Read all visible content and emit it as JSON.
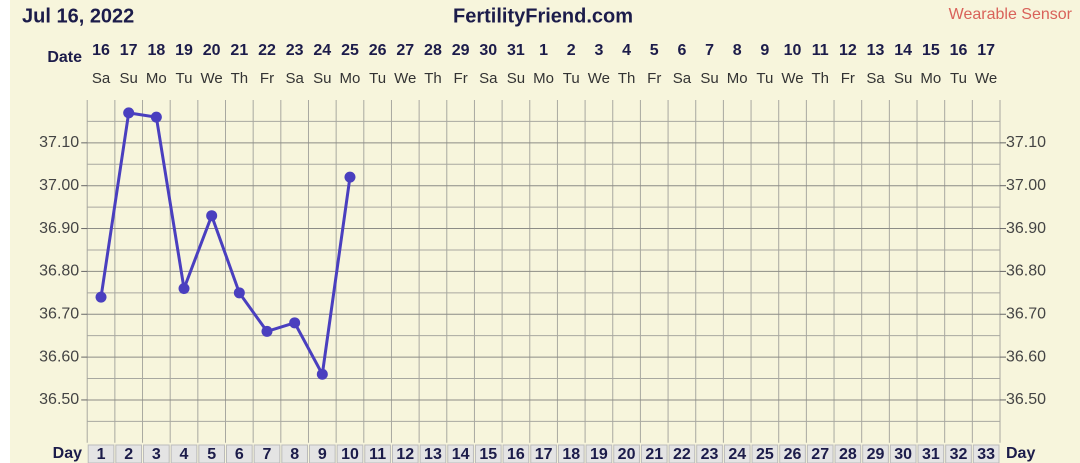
{
  "chart_data": {
    "type": "line",
    "chart_date": "Jul 16, 2022",
    "title": "FertilityFriend.com",
    "source": "Wearable Sensor",
    "date_label": "Date",
    "day_label": "Day",
    "categories": [
      "1",
      "2",
      "3",
      "4",
      "5",
      "6",
      "7",
      "8",
      "9",
      "10",
      "11",
      "12",
      "13",
      "14",
      "15",
      "16",
      "17",
      "18",
      "19",
      "20",
      "21",
      "22",
      "23",
      "24",
      "25",
      "26",
      "27",
      "28",
      "29",
      "30",
      "31",
      "32",
      "33"
    ],
    "dates": [
      "16",
      "17",
      "18",
      "19",
      "20",
      "21",
      "22",
      "23",
      "24",
      "25",
      "26",
      "27",
      "28",
      "29",
      "30",
      "31",
      "1",
      "2",
      "3",
      "4",
      "5",
      "6",
      "7",
      "8",
      "9",
      "10",
      "11",
      "12",
      "13",
      "14",
      "15",
      "16",
      "17"
    ],
    "weekdays": [
      "Sa",
      "Su",
      "Mo",
      "Tu",
      "We",
      "Th",
      "Fr",
      "Sa",
      "Su",
      "Mo",
      "Tu",
      "We",
      "Th",
      "Fr",
      "Sa",
      "Su",
      "Mo",
      "Tu",
      "We",
      "Th",
      "Fr",
      "Sa",
      "Su",
      "Mo",
      "Tu",
      "We",
      "Th",
      "Fr",
      "Sa",
      "Su",
      "Mo",
      "Tu",
      "We"
    ],
    "values": [
      36.74,
      37.17,
      37.16,
      36.76,
      36.93,
      36.75,
      36.66,
      36.68,
      36.56,
      37.02,
      null,
      null,
      null,
      null,
      null,
      null,
      null,
      null,
      null,
      null,
      null,
      null,
      null,
      null,
      null,
      null,
      null,
      null,
      null,
      null,
      null,
      null,
      null
    ],
    "color": "#4a3fbf",
    "ylim": [
      36.4,
      37.2
    ],
    "yticks": [
      {
        "value": 36.5,
        "label": "36.50"
      },
      {
        "value": 36.6,
        "label": "36.60"
      },
      {
        "value": 36.7,
        "label": "36.70"
      },
      {
        "value": 36.8,
        "label": "36.80"
      },
      {
        "value": 36.9,
        "label": "36.90"
      },
      {
        "value": 37.0,
        "label": "37.00"
      },
      {
        "value": 37.1,
        "label": "37.10"
      }
    ],
    "grid": true
  }
}
